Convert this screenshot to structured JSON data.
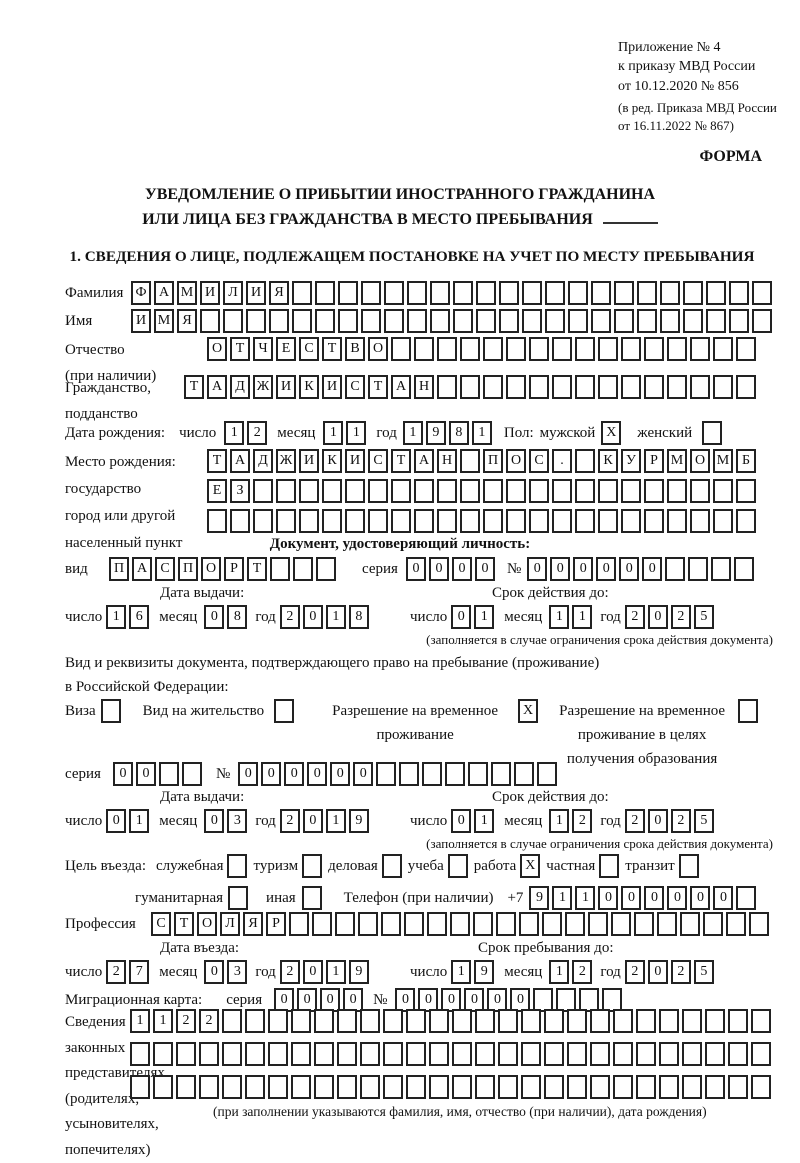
{
  "annex": {
    "lines": [
      "Приложение № 4",
      "к приказу МВД России",
      "от 10.12.2020 № 856"
    ],
    "note_lines": [
      "(в ред. Приказа МВД России",
      "от 16.11.2022 № 867)"
    ],
    "form_label": "ФОРМА"
  },
  "title": {
    "line1": "УВЕДОМЛЕНИЕ О ПРИБЫТИИ ИНОСТРАННОГО ГРАЖДАНИНА",
    "line2": "ИЛИ ЛИЦА БЕЗ ГРАЖДАНСТВА В МЕСТО ПРЕБЫВАНИЯ"
  },
  "section1": {
    "heading": "1. СВЕДЕНИЯ О ЛИЦЕ, ПОДЛЕЖАЩЕМ ПОСТАНОВКЕ НА УЧЕТ ПО МЕСТУ ПРЕБЫВАНИЯ"
  },
  "person": {
    "surname": {
      "label": "Фамилия",
      "value": "ФАМИЛИЯ",
      "length": 28
    },
    "name": {
      "label": "Имя",
      "value": "ИМЯ",
      "length": 28
    },
    "patronymic": {
      "label_lines": [
        "Отчество",
        "(при наличии)"
      ],
      "value": "ОТЧЕСТВО",
      "length": 24
    },
    "citizenship": {
      "label_lines": [
        "Гражданство,",
        "подданство"
      ],
      "value": "ТАДЖИКИСТАН",
      "length": 25
    },
    "birth_date": {
      "label": "Дата рождения:",
      "day_label": "число",
      "day": {
        "value": "12",
        "length": 2
      },
      "month_label": "месяц",
      "month": {
        "value": "11",
        "length": 2
      },
      "year_label": "год",
      "year": {
        "value": "1981",
        "length": 4
      }
    },
    "sex": {
      "label": "Пол:",
      "male_label": "мужской",
      "male": {
        "value": "X",
        "length": 1
      },
      "female_label": "женский",
      "female": {
        "value": "",
        "length": 1
      }
    },
    "birth_place": {
      "label_lines": [
        "Место рождения:",
        "государство",
        "город или другой",
        "населенный пункт"
      ],
      "row1": {
        "value": "ТАДЖИКИСТАН ПОС. КУРМОМБ",
        "length": 24
      },
      "row2": {
        "value": "ЕЗ",
        "length": 24
      },
      "row3": {
        "value": "",
        "length": 24
      }
    }
  },
  "identity_doc": {
    "heading": "Документ, удостоверяющий личность:",
    "kind_label": "вид",
    "kind": {
      "value": "ПАСПОРТ",
      "length": 10
    },
    "series_label": "серия",
    "series": {
      "value": "0000",
      "length": 4
    },
    "number_label": "№",
    "number": {
      "value": "000000",
      "length": 10
    },
    "issue_heading": "Дата выдачи:",
    "issue": {
      "day_label": "число",
      "day": {
        "value": "16",
        "length": 2
      },
      "month_label": "месяц",
      "month": {
        "value": "08",
        "length": 2
      },
      "year_label": "год",
      "year": {
        "value": "2018",
        "length": 4
      }
    },
    "expiry_heading": "Срок действия до:",
    "expiry": {
      "day_label": "число",
      "day": {
        "value": "01",
        "length": 2
      },
      "month_label": "месяц",
      "month": {
        "value": "11",
        "length": 2
      },
      "year_label": "год",
      "year": {
        "value": "2025",
        "length": 4
      }
    },
    "note": "(заполняется в случае ограничения срока действия документа)"
  },
  "residence_doc": {
    "intro_lines": [
      "Вид и реквизиты документа, подтверждающего право на пребывание (проживание)",
      "в Российской Федерации:"
    ],
    "visa": {
      "label": "Виза",
      "box": {
        "value": "",
        "length": 1
      }
    },
    "residence_permit": {
      "label": "Вид на жительство",
      "box": {
        "value": "",
        "length": 1
      }
    },
    "temp_permit": {
      "label_lines": [
        "Разрешение на временное",
        "проживание"
      ],
      "box": {
        "value": "X",
        "length": 1
      }
    },
    "edu_permit": {
      "label_lines": [
        "Разрешение на временное",
        "проживание в целях",
        "получения образования"
      ],
      "box": {
        "value": "",
        "length": 1
      }
    },
    "series_label": "серия",
    "series": {
      "value": "00",
      "length": 4
    },
    "number_label": "№",
    "number": {
      "value": "000000",
      "length": 14
    },
    "issue_heading": "Дата выдачи:",
    "issue": {
      "day_label": "число",
      "day": {
        "value": "01",
        "length": 2
      },
      "month_label": "месяц",
      "month": {
        "value": "03",
        "length": 2
      },
      "year_label": "год",
      "year": {
        "value": "2019",
        "length": 4
      }
    },
    "expiry_heading": "Срок действия до:",
    "expiry": {
      "day_label": "число",
      "day": {
        "value": "01",
        "length": 2
      },
      "month_label": "месяц",
      "month": {
        "value": "12",
        "length": 2
      },
      "year_label": "год",
      "year": {
        "value": "2025",
        "length": 4
      }
    },
    "note": "(заполняется в случае ограничения срока действия документа)"
  },
  "visit": {
    "purpose_label": "Цель въезда:",
    "purposes": [
      {
        "label": "служебная",
        "box": {
          "value": "",
          "length": 1
        }
      },
      {
        "label": "туризм",
        "box": {
          "value": "",
          "length": 1
        }
      },
      {
        "label": "деловая",
        "box": {
          "value": "",
          "length": 1
        }
      },
      {
        "label": "учеба",
        "box": {
          "value": "",
          "length": 1
        }
      },
      {
        "label": "работа",
        "box": {
          "value": "X",
          "length": 1
        }
      },
      {
        "label": "частная",
        "box": {
          "value": "",
          "length": 1
        }
      },
      {
        "label": "транзит",
        "box": {
          "value": "",
          "length": 1
        }
      }
    ],
    "purposes2": [
      {
        "label": "гуманитарная",
        "box": {
          "value": "",
          "length": 1
        }
      },
      {
        "label": "иная",
        "box": {
          "value": "",
          "length": 1
        }
      }
    ],
    "phone_label": "Телефон (при наличии)",
    "phone_prefix": "+7",
    "phone": {
      "value": "911000000",
      "length": 10
    },
    "profession_label": "Профессия",
    "profession": {
      "value": "СТОЛЯР",
      "length": 27
    },
    "entry_heading": "Дата въезда:",
    "entry": {
      "day_label": "число",
      "day": {
        "value": "27",
        "length": 2
      },
      "month_label": "месяц",
      "month": {
        "value": "03",
        "length": 2
      },
      "year_label": "год",
      "year": {
        "value": "2019",
        "length": 4
      }
    },
    "stay_heading": "Срок пребывания до:",
    "stay": {
      "day_label": "число",
      "day": {
        "value": "19",
        "length": 2
      },
      "month_label": "месяц",
      "month": {
        "value": "12",
        "length": 2
      },
      "year_label": "год",
      "year": {
        "value": "2025",
        "length": 4
      }
    },
    "migration_card_label": "Миграционная карта:",
    "mc_series_label": "серия",
    "mc_series": {
      "value": "0000",
      "length": 4
    },
    "mc_number_label": "№",
    "mc_number": {
      "value": "000000",
      "length": 10
    }
  },
  "representatives": {
    "label_lines": [
      "Сведения о",
      "законных",
      "представителях",
      "(родителях,",
      "усыновителях,",
      "попечителях)"
    ],
    "row1": {
      "value": "1122",
      "length": 28
    },
    "row2": {
      "value": "",
      "length": 28
    },
    "row3": {
      "value": "",
      "length": 28
    },
    "note": "(при заполнении указываются фамилия, имя, отчество (при наличии), дата рождения)"
  }
}
